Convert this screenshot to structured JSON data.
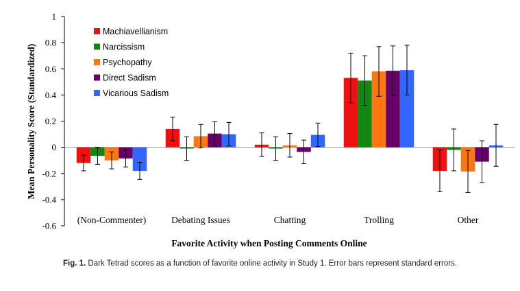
{
  "chart_data": {
    "type": "bar",
    "ylabel": "Mean Personality Score (Standardized)",
    "xlabel": "Favorite Activity when Posting Comments Online",
    "ylim": [
      -0.6,
      1
    ],
    "yticks": [
      -0.6,
      -0.4,
      -0.2,
      0,
      0.2,
      0.4,
      0.6,
      0.8,
      1
    ],
    "ytick_labels": [
      "-0.6",
      "-0.4",
      "-0.2",
      "0",
      "0.2",
      "0.4",
      "0.6",
      "0.8",
      "1"
    ],
    "categories": [
      "(Non-Commenter)",
      "Debating Issues",
      "Chatting",
      "Trolling",
      "Other"
    ],
    "legend_position": "top-left",
    "series": [
      {
        "name": "Machiavellianism",
        "color": "#ee1111",
        "values": [
          -0.12,
          0.14,
          0.02,
          0.53,
          -0.18
        ],
        "errors": [
          0.06,
          0.09,
          0.09,
          0.19,
          0.16
        ]
      },
      {
        "name": "Narcissism",
        "color": "#118811",
        "values": [
          -0.065,
          -0.01,
          -0.01,
          0.51,
          -0.02
        ],
        "errors": [
          0.065,
          0.09,
          0.09,
          0.19,
          0.16
        ]
      },
      {
        "name": "Psychopathy",
        "color": "#ff7711",
        "values": [
          -0.1,
          0.085,
          0.015,
          0.58,
          -0.185
        ],
        "errors": [
          0.065,
          0.09,
          0.09,
          0.19,
          0.16
        ]
      },
      {
        "name": "Direct Sadism",
        "color": "#660066",
        "values": [
          -0.085,
          0.105,
          -0.035,
          0.585,
          -0.11
        ],
        "errors": [
          0.065,
          0.09,
          0.09,
          0.19,
          0.16
        ]
      },
      {
        "name": "Vicarious Sadism",
        "color": "#3366ff",
        "values": [
          -0.18,
          0.1,
          0.095,
          0.59,
          0.015
        ],
        "errors": [
          0.065,
          0.09,
          0.09,
          0.19,
          0.16
        ]
      }
    ]
  },
  "caption": {
    "label": "Fig. 1.",
    "text": "Dark Tetrad scores as a function of favorite online activity in Study 1. Error bars represent standard errors."
  }
}
